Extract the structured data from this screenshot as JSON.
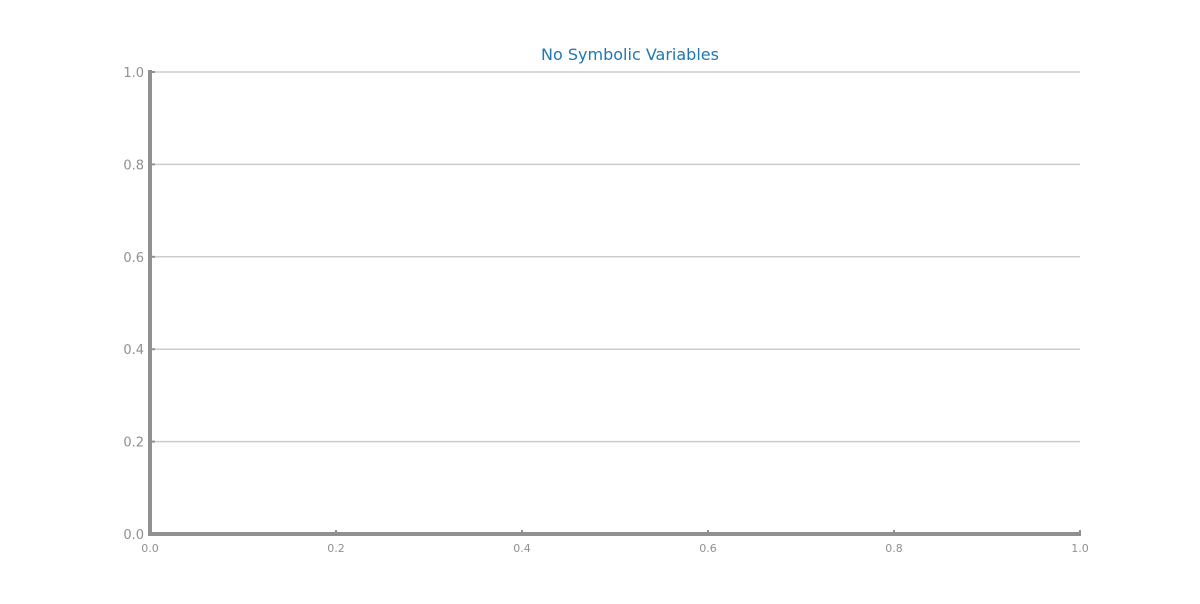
{
  "chart_data": {
    "type": "line",
    "title": "No Symbolic Variables",
    "xlabel": "",
    "ylabel": "",
    "xlim": [
      0.0,
      1.0
    ],
    "ylim": [
      0.0,
      1.0
    ],
    "x_ticks": [
      "0.0",
      "0.2",
      "0.4",
      "0.6",
      "0.8",
      "1.0"
    ],
    "y_ticks": [
      "0.0",
      "0.2",
      "0.4",
      "0.6",
      "0.8",
      "1.0"
    ],
    "grid": "horizontal",
    "series": []
  },
  "colors": {
    "title": "#1f77b4",
    "axis": "#909090",
    "grid": "#cccccc",
    "tick_label": "#909090"
  }
}
